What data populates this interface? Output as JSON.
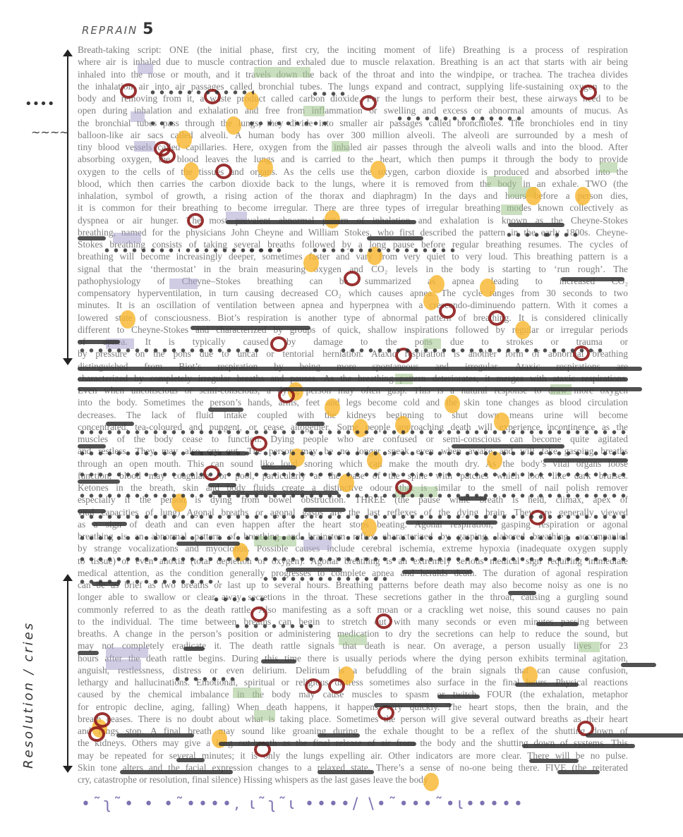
{
  "header": {
    "label": "REPRAIN",
    "number": "5"
  },
  "colors": {
    "text": "#7c7c7c",
    "highlight_yellow": "#f7b52a",
    "highlight_green": "#9fc48a",
    "highlight_purple": "#a9a3cc",
    "circle_red": "#8e1b1b",
    "marker_black": "#333333"
  },
  "icons": [
    "double-arrow-vertical-icon",
    "red-circle-mark-icon",
    "dot-row-mark-icon",
    "squiggle-mark-icon"
  ],
  "margin": {
    "dots": "••••",
    "squiggle": "~~~~",
    "vertical_note": "Resolution / cries"
  },
  "footer_scribble": "•˜ʅ˜• • •˜••••, ɩ˜ʅ˜ɩ ••••/ \\•˜•••˜•ɩ•••••",
  "lines": [
    "Breath-taking script: ONE (the initial phase, first cry, the inciting moment of life) Breathing is a process of respiration",
    "where air is inhaled due to muscle contraction and exhaled due to muscle relaxation. Breathing is an act that starts with air being",
    "inhaled into the nose or mouth, and it travels down the back of the throat and into the windpipe, or trachea. The trachea divides",
    "the inhalation air into air passages called bronchial tubes. The lungs expand and contract, supplying life-sustaining oxygen to the",
    "body and removing from it, a waste product called carbon dioxide. For the lungs to perform their best, these airways need to be",
    "open during inhalation and exhalation and free from inflammation or swelling and excess or abnormal amounts of mucus. As",
    "the bronchial tubes pass through the lungs, they divide into smaller air passages called bronchioles. The bronchioles end in tiny",
    "balloon-like air sacs called alveoli. A human body has over 300 million alveoli. The alveoli are surrounded by a mesh of",
    "tiny blood vessels called capillaries. Here, oxygen from the inhaled air passes through the alveoli walls and into the blood. After",
    "absorbing oxygen, the blood leaves the lungs and is carried to the heart, which then pumps it through the body to provide",
    "oxygen to the cells of the tissues and organs. As the cells use the oxygen, carbon dioxide is produced and absorbed into the",
    "blood, which then carries the carbon dioxide back to the lungs, where it is removed from the body in an exhale. TWO (the",
    "inhalation, symbol of growth, a rising action of the thorax and diaphragm) In the days and hours before a person dies,",
    "it is common for their breathing to become irregular. There are three types of irregular breathing modes known collectively as",
    "dyspnea or air hunger. The most prevalent abnormal pattern of inhalation and exhalation is known as the Cheyne-Stokes",
    "breathing, named for the physicians John Cheyne and William Stokes, who first described the pattern in the early 1800s. Cheyne-",
    "Stokes breathing consists of taking several breaths followed by a long pause before regular breathing resumes. The cycles of",
    "breathing will become increasingly deeper, sometimes faster and vary from very quiet to very loud. This breathing pattern is a",
    "signal that the ‘thermostat’ in the brain measuring oxygen and CO₂ levels in the body is starting to ‘run rough’. The",
    "pathophysiology of Cheyne–Stokes breathing can be summarized as apnea leading to increased CO₂",
    "compensatory hyperventilation, in turn causing decreased CO₂ which causes apnea. The cycle ranges from 30 seconds to two",
    "minutes. It is an oscillation of ventilation between apnea and hyperpnea with a crescendo-diminuendo pattern. With it comes a",
    "lowered state of consciousness. Biot’s respiration is another type of abnormal pattern of breathing. It is considered clinically",
    "different to Cheyne-Stokes and characterized by groups of quick, shallow inspirations followed by regular or irregular periods",
    "of apnea. It is typically caused by damage to the pons due to strokes or trauma or",
    "by pressure on the pons due to uncal or tentorial herniation. Ataxic respiration is another form of abnormal breathing",
    "distinguished from Biot’s respiration by being more spontaneous and irregular. Ataxic respirations are",
    "characterized by completely irregular breaths and pauses. As the breathing pattern deteriorates, it merges with ataxic respirations.",
    "Even when unconscious or semi-conscious, a dying person may often gasp. This is a natural response to draw more oxygen",
    "into the body. Sometimes the person’s hands, arms, feet and legs become cold and the skin tone changes as blood circulation",
    "decreases. The lack of fluid intake coupled with the kidneys beginning to shut down means urine will become",
    "concentrated, tea-coloured and pungent, or cease altogether. Some people approaching death will experience incontinence as the",
    "muscles of the body cease to function. Dying people who are confused or semi-conscious can become quite agitated",
    "and restless. They may also cry out. The person may be no longer speak even when awake and will take gasping breaths",
    "through an open mouth. This can sound like loud snoring which can make the mouth dry. As the body’s vital organs loose",
    "function, blood may coagulate, or pool, particularly at the base of the spine with patches which look like dark bruises.",
    "Ketones in the breath, skin and body fluids create a distinctive odour that is similar to the smell of nail polish remover",
    "especially if the person is dying from bowel obstruction. THREE (the pause while breath is held, climax, apex of",
    "vital capacities of lung) Agonal breaths or agonal gasps are the last reflexes of the dying brain. They are generally viewed",
    "as a sign of death and can even happen after the heart stops beating. Agonal respiration, gasping respiration or agonal",
    "breathing is an abnormal pattern of breathing and brainstem reflex characterized by gasping, labored breathing, accompanied",
    "by strange vocalizations and myoclonus. Possible causes include cerebral ischemia, extreme hypoxia (inadequate oxygen supply",
    "to tissue) or even anoxia (total depletion of oxygen). Agonal breathing is an extremely serious medical sign requiring immediate",
    "medical attention, as the condition generally progresses to complete apnea and heralds death. The duration of agonal respiration",
    "can be as brief as two breaths or last up to several hours. Breathing patterns before death may also become noisy as one is no",
    "longer able to swallow or clear away secretions in the throat. These secretions gather in the throat, causing a gurgling sound",
    "commonly referred to as the death rattle. Also manifesting as a soft moan or a crackling wet noise, this sound causes no pain",
    "to the individual. The time between breaths can begin to stretch out with many seconds or even minutes passing between",
    "breaths. A change in the person’s position or administering medication to dry the secretions can help to reduce the sound, but",
    "may not completely eradicate it. The death rattle signals that death is near. On average, a person usually lives for 23",
    "hours after the death rattle begins. During this time there is usually periods where the dying person exhibits terminal agitation,",
    "anguish, restlessness, distress or even delirium. Delirium is a befuddling of the brain signals that can cause confusion,",
    "lethargy and hallucinations. Emotional, spiritual or religious distress sometimes also surface in the final hours. Physical reactions",
    "caused by the chemical imbalance in the body may cause muscles to spasm or twitch. FOUR (the exhalation, metaphor",
    "for entropic decline, aging, falling) When death happens, it happens very quickly. The heart stops, then the brain, and the",
    "breath ceases. There is no doubt about what is taking place. Sometimes the person will give several outward breaths as their heart",
    "and lungs stop. A final breath may sound like groaning during the exhale thought to be a reflex of the shutting down of",
    "the kidneys. Others may give a long out-breath as the final release of air from the body and the shutting down of systems. This",
    "may be repeated for several minutes; it is only the lungs expelling air. Other indicators are more clear. There will be no pulse.",
    "Skin tone alters and the facial expression changes to a relaxed state. There’s a sense of no-one being there. FIVE (the reiterated",
    "cry, catastrophe or resolution, final silence) Hissing whispers as the last gases leave the body"
  ]
}
